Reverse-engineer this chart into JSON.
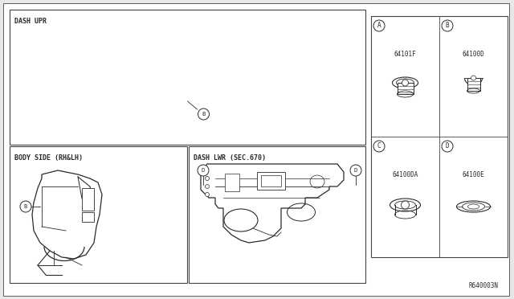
{
  "bg_color": "#e8e8e8",
  "main_bg": "#ffffff",
  "border_color": "#444444",
  "line_color": "#2a2a2a",
  "ref_code": "R640003N",
  "dash_upr_label": "DASH UPR",
  "body_side_label": "BODY SIDE (RH&LH)",
  "dash_lwr_label": "DASH LWR (SEC.670)",
  "parts": [
    {
      "label": "A",
      "part_no": "64101F"
    },
    {
      "label": "B",
      "part_no": "64100D"
    },
    {
      "label": "C",
      "part_no": "64100DA"
    },
    {
      "label": "D",
      "part_no": "64100E"
    }
  ]
}
